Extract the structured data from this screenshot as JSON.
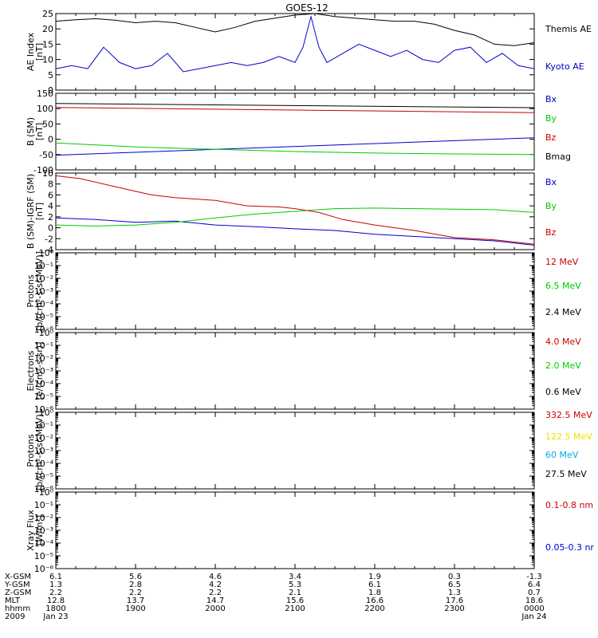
{
  "title": "GOES-12",
  "chart_data": [
    {
      "id": "ae",
      "type": "line",
      "ylabel": [
        "AE Index",
        "[nT]"
      ],
      "ylim": [
        0,
        25
      ],
      "yticks": [
        "0",
        "5",
        "10",
        "15",
        "20",
        "25"
      ],
      "tick_values": [
        0,
        5,
        10,
        15,
        20,
        25
      ],
      "series": [
        {
          "name": "Themis AE",
          "color": "#000000",
          "x": [
            0,
            0.25,
            0.5,
            0.75,
            1.0,
            1.25,
            1.5,
            1.75,
            2.0,
            2.25,
            2.5,
            2.75,
            3.0,
            3.25,
            3.5,
            3.75,
            4.0,
            4.25,
            4.5,
            4.75,
            5.0,
            5.25,
            5.5,
            5.75,
            6.0
          ],
          "values": [
            22.5,
            23,
            23.3,
            22.8,
            22,
            22.5,
            22,
            20.5,
            19,
            20.5,
            22.5,
            23.5,
            24.5,
            25,
            24,
            23.5,
            23,
            22.5,
            22.5,
            21.5,
            19.5,
            18,
            15,
            14.5,
            15.5
          ]
        },
        {
          "name": "Kyoto AE",
          "color": "#0000cc",
          "x": [
            0,
            0.2,
            0.4,
            0.6,
            0.8,
            1.0,
            1.2,
            1.4,
            1.6,
            1.8,
            2.0,
            2.2,
            2.4,
            2.6,
            2.8,
            3.0,
            3.1,
            3.2,
            3.3,
            3.4,
            3.6,
            3.8,
            4.0,
            4.2,
            4.4,
            4.6,
            4.8,
            5.0,
            5.2,
            5.4,
            5.6,
            5.8,
            6.0
          ],
          "values": [
            7,
            8,
            7,
            14,
            9,
            7,
            8,
            12,
            6,
            7,
            8,
            9,
            8,
            9,
            11,
            9,
            14,
            24,
            14,
            9,
            12,
            15,
            13,
            11,
            13,
            10,
            9,
            13,
            14,
            9,
            12,
            8,
            7
          ]
        }
      ]
    },
    {
      "id": "b",
      "type": "line",
      "ylabel": [
        "B (SM)",
        "[nT]"
      ],
      "ylim": [
        -100,
        150
      ],
      "yticks": [
        "-100",
        "-50",
        "0",
        "50",
        "100",
        "150"
      ],
      "tick_values": [
        -100,
        -50,
        0,
        50,
        100,
        150
      ],
      "series": [
        {
          "name": "Bx",
          "color": "#0000cc",
          "x": [
            0,
            6
          ],
          "values": [
            -52,
            5
          ]
        },
        {
          "name": "By",
          "color": "#00cc00",
          "x": [
            0,
            1,
            2,
            3,
            4,
            5,
            6
          ],
          "values": [
            -12,
            -25,
            -33,
            -40,
            -45,
            -48,
            -50
          ]
        },
        {
          "name": "Bz",
          "color": "#cc0000",
          "x": [
            0,
            6
          ],
          "values": [
            104,
            87
          ]
        },
        {
          "name": "Bmag",
          "color": "#000000",
          "x": [
            0,
            6
          ],
          "values": [
            117,
            103
          ]
        }
      ]
    },
    {
      "id": "bdiff",
      "type": "line",
      "ylabel": [
        "B (SM)-IGRF (SM)",
        "[nT]"
      ],
      "ylim": [
        -4,
        10
      ],
      "yticks": [
        "-4",
        "-2",
        "0",
        "2",
        "4",
        "6",
        "8",
        "10"
      ],
      "tick_values": [
        -4,
        -2,
        0,
        2,
        4,
        6,
        8,
        10
      ],
      "series": [
        {
          "name": "Bx",
          "color": "#0000cc",
          "x": [
            0,
            0.5,
            1.0,
            1.5,
            2.0,
            2.5,
            3.0,
            3.5,
            4.0,
            4.5,
            5.0,
            5.5,
            6.0
          ],
          "values": [
            1.8,
            1.5,
            1.0,
            1.2,
            0.5,
            0.2,
            -0.2,
            -0.5,
            -1.2,
            -1.6,
            -2.0,
            -2.4,
            -3.2
          ]
        },
        {
          "name": "By",
          "color": "#00cc00",
          "x": [
            0,
            0.5,
            1.0,
            1.5,
            2.0,
            2.5,
            3.0,
            3.5,
            4.0,
            4.5,
            5.0,
            5.5,
            6.0
          ],
          "values": [
            0.5,
            0.3,
            0.5,
            1.0,
            1.8,
            2.5,
            3.0,
            3.5,
            3.6,
            3.5,
            3.4,
            3.3,
            2.8
          ]
        },
        {
          "name": "Bz",
          "color": "#cc0000",
          "x": [
            0,
            0.3,
            0.6,
            0.9,
            1.2,
            1.5,
            2.0,
            2.4,
            2.8,
            3.0,
            3.3,
            3.6,
            4.0,
            4.5,
            5.0,
            5.5,
            6.0
          ],
          "values": [
            9.5,
            9.0,
            8.0,
            7.0,
            6.0,
            5.5,
            5.0,
            4.0,
            3.8,
            3.5,
            2.8,
            1.5,
            0.5,
            -0.5,
            -1.8,
            -2.2,
            -3.0
          ]
        }
      ]
    },
    {
      "id": "p1",
      "type": "line",
      "log": true,
      "ylabel": [
        "Protons",
        "[p/(cm²-s-sr-MeV)]"
      ],
      "ylim_exp": [
        -6,
        0
      ],
      "yticks": [
        "10⁰",
        "10⁻¹",
        "10⁻²",
        "10⁻³",
        "10⁻⁴",
        "10⁻⁵",
        "10⁻⁶"
      ],
      "tick_values": [
        0,
        -1,
        -2,
        -3,
        -4,
        -5,
        -6
      ],
      "series": [
        {
          "name": "12 MeV",
          "color": "#cc0000"
        },
        {
          "name": "6.5 MeV",
          "color": "#00cc00"
        },
        {
          "name": "2.4 MeV",
          "color": "#000000"
        }
      ]
    },
    {
      "id": "e",
      "type": "line",
      "log": true,
      "ylabel": [
        "Electrons",
        "[e/(cm²-s-sr)]"
      ],
      "ylim_exp": [
        -6,
        0
      ],
      "yticks": [
        "10⁰",
        "10⁻¹",
        "10⁻²",
        "10⁻³",
        "10⁻⁴",
        "10⁻⁵",
        "10⁻⁶"
      ],
      "tick_values": [
        0,
        -1,
        -2,
        -3,
        -4,
        -5,
        -6
      ],
      "series": [
        {
          "name": "4.0 MeV",
          "color": "#cc0000"
        },
        {
          "name": "2.0 MeV",
          "color": "#00cc00"
        },
        {
          "name": "0.6 MeV",
          "color": "#000000"
        }
      ]
    },
    {
      "id": "p2",
      "type": "line",
      "log": true,
      "ylabel": [
        "Protons",
        "[p/(cm²-s-sr-MeV)]"
      ],
      "ylim_exp": [
        -6,
        0
      ],
      "yticks": [
        "10⁰",
        "10⁻¹",
        "10⁻²",
        "10⁻³",
        "10⁻⁴",
        "10⁻⁵",
        "10⁻⁶"
      ],
      "tick_values": [
        0,
        -1,
        -2,
        -3,
        -4,
        -5,
        -6
      ],
      "series": [
        {
          "name": "332.5 MeV",
          "color": "#cc0000"
        },
        {
          "name": "122.5 MeV",
          "color": "#f0e000"
        },
        {
          "name": "60 MeV",
          "color": "#00aadd"
        },
        {
          "name": "27.5 MeV",
          "color": "#000000"
        }
      ]
    },
    {
      "id": "xray",
      "type": "line",
      "log": true,
      "ylabel": [
        "Xray Flux",
        "[W/m²]"
      ],
      "ylim_exp": [
        -6,
        0
      ],
      "yticks": [
        "10⁰",
        "10⁻¹",
        "10⁻²",
        "10⁻³",
        "10⁻⁴",
        "10⁻⁵",
        "10⁻⁶"
      ],
      "tick_values": [
        0,
        -1,
        -2,
        -3,
        -4,
        -5,
        -6
      ],
      "series": [
        {
          "name": "0.1-0.8 nm",
          "color": "#cc0000"
        },
        {
          "name": "0.05-0.3 nr",
          "color": "#0000cc"
        }
      ]
    }
  ],
  "xaxis": {
    "row_labels": [
      "X-GSM",
      "Y-GSM",
      "Z-GSM",
      "MLT",
      "hhmm",
      "2009"
    ],
    "columns": [
      {
        "x": 0,
        "values": [
          "6.1",
          "1.3",
          "2.2",
          "12.8",
          "1800",
          "Jan 23"
        ]
      },
      {
        "x": 1,
        "values": [
          "5.6",
          "2.8",
          "2.2",
          "13.7",
          "1900",
          ""
        ]
      },
      {
        "x": 2,
        "values": [
          "4.6",
          "4.2",
          "2.2",
          "14.7",
          "2000",
          ""
        ]
      },
      {
        "x": 3,
        "values": [
          "3.4",
          "5.3",
          "2.1",
          "15.6",
          "2100",
          ""
        ]
      },
      {
        "x": 4,
        "values": [
          "1.9",
          "6.1",
          "1.8",
          "16.6",
          "2200",
          ""
        ]
      },
      {
        "x": 5,
        "values": [
          "0.3",
          "6.5",
          "1.3",
          "17.6",
          "2300",
          ""
        ]
      },
      {
        "x": 6,
        "values": [
          "-1.3",
          "6.4",
          "0.7",
          "18.6",
          "0000",
          "Jan 24"
        ]
      }
    ]
  }
}
